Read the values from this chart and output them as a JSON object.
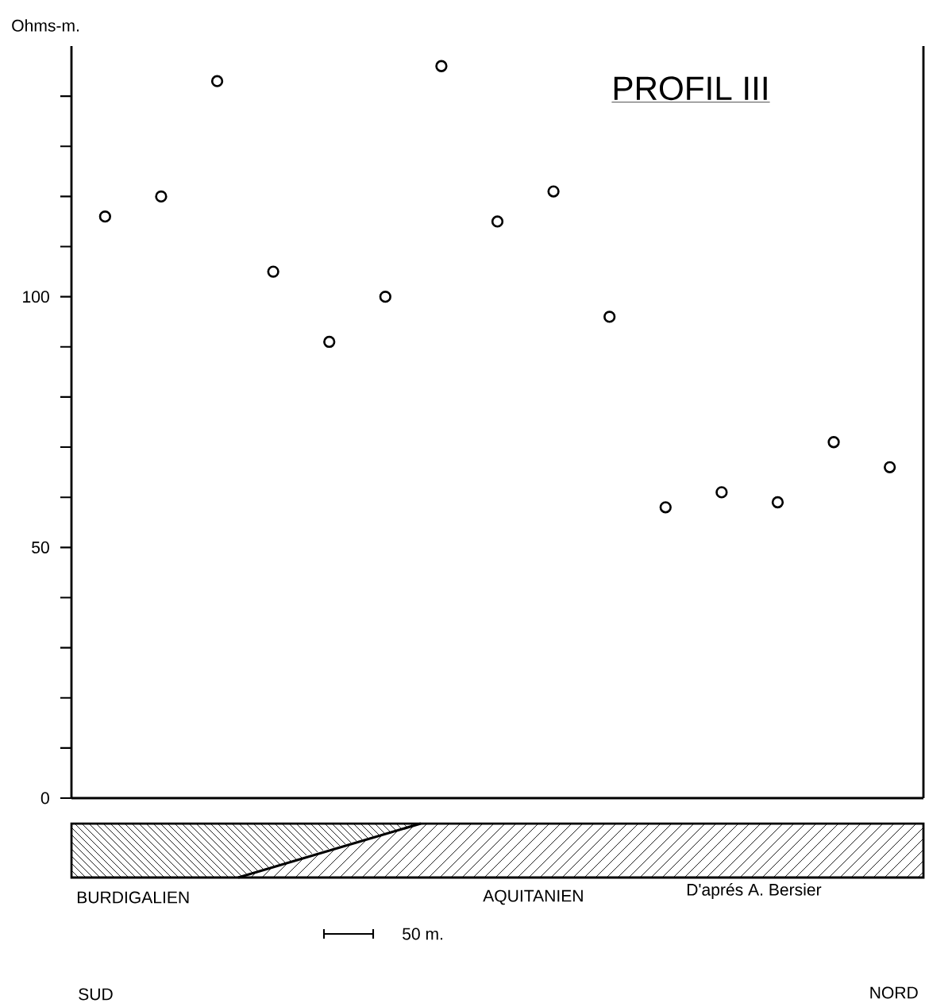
{
  "chart_data": {
    "type": "scatter",
    "title": "PROFIL III",
    "ylabel": "Ohms-m.",
    "categories": [
      null,
      null,
      null,
      null,
      null,
      null,
      null,
      null,
      null,
      null,
      null,
      null,
      null,
      null,
      null
    ],
    "series": [
      {
        "color": "#000000",
        "values": [
          116,
          120,
          143,
          105,
          91,
          100,
          146,
          115,
          121,
          96,
          58,
          61,
          59,
          71,
          66
        ]
      }
    ],
    "ylim": [
      0,
      150
    ],
    "yticks": [
      0,
      {
        "value": 10,
        "label": null
      },
      {
        "value": 20,
        "label": null
      },
      {
        "value": 30,
        "label": null
      },
      {
        "value": 40,
        "label": null
      },
      50,
      {
        "value": 60,
        "label": null
      },
      {
        "value": 70,
        "label": null
      },
      {
        "value": 80,
        "label": null
      },
      {
        "value": 90,
        "label": null
      },
      100,
      {
        "value": 110,
        "label": null
      },
      {
        "value": 120,
        "label": null
      },
      {
        "value": 130,
        "label": null
      },
      {
        "value": 140,
        "label": null
      }
    ],
    "marker": "circle",
    "tick_labels": "y",
    "annotations": [
      "BURDIGALIEN",
      "AQUITANIEN",
      "D'aprés A. Bersier",
      "50 m.",
      "SUD",
      "NORD"
    ]
  }
}
